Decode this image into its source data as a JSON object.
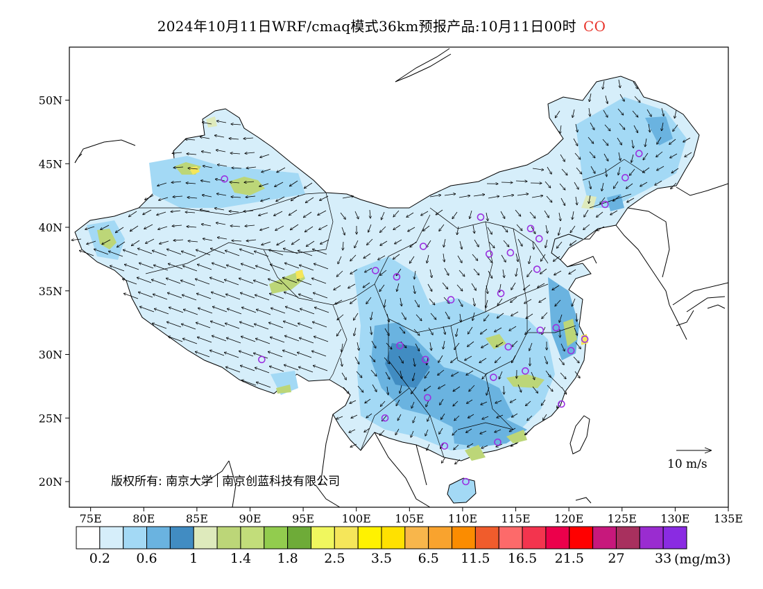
{
  "header": {
    "title": "2024年10月11日WRF/cmaq模式36km预报产品:10月11日00时",
    "species": "CO"
  },
  "map": {
    "lat_labels": [
      "50N",
      "45N",
      "40N",
      "35N",
      "30N",
      "25N",
      "20N"
    ],
    "lon_labels": [
      "75E",
      "80E",
      "85E",
      "90E",
      "95E",
      "100E",
      "105E",
      "110E",
      "115E",
      "120E",
      "125E",
      "130E",
      "135E"
    ],
    "copyright_left": "版权所有: 南京大学",
    "copyright_right": "南京创蓝科技有限公司",
    "wind_legend": "10 m/s",
    "station_marker_color": "#9b30e0",
    "stations": [
      {
        "lon": 87.6,
        "lat": 43.8
      },
      {
        "lon": 91.1,
        "lat": 29.6
      },
      {
        "lon": 101.8,
        "lat": 36.6
      },
      {
        "lon": 103.8,
        "lat": 36.1
      },
      {
        "lon": 106.3,
        "lat": 38.5
      },
      {
        "lon": 111.7,
        "lat": 40.8
      },
      {
        "lon": 116.4,
        "lat": 39.9
      },
      {
        "lon": 117.2,
        "lat": 39.1
      },
      {
        "lon": 114.5,
        "lat": 38.0
      },
      {
        "lon": 112.5,
        "lat": 37.9
      },
      {
        "lon": 117.0,
        "lat": 36.7
      },
      {
        "lon": 113.6,
        "lat": 34.8
      },
      {
        "lon": 108.9,
        "lat": 34.3
      },
      {
        "lon": 104.1,
        "lat": 30.7
      },
      {
        "lon": 106.5,
        "lat": 29.6
      },
      {
        "lon": 106.7,
        "lat": 26.6
      },
      {
        "lon": 102.7,
        "lat": 25.0
      },
      {
        "lon": 114.3,
        "lat": 30.6
      },
      {
        "lon": 112.9,
        "lat": 28.2
      },
      {
        "lon": 115.9,
        "lat": 28.7
      },
      {
        "lon": 117.3,
        "lat": 31.9
      },
      {
        "lon": 118.8,
        "lat": 32.1
      },
      {
        "lon": 120.2,
        "lat": 30.3
      },
      {
        "lon": 121.5,
        "lat": 31.2
      },
      {
        "lon": 119.3,
        "lat": 26.1
      },
      {
        "lon": 113.3,
        "lat": 23.1
      },
      {
        "lon": 108.3,
        "lat": 22.8
      },
      {
        "lon": 110.3,
        "lat": 20.0
      },
      {
        "lon": 123.4,
        "lat": 41.8
      },
      {
        "lon": 125.3,
        "lat": 43.9
      },
      {
        "lon": 126.6,
        "lat": 45.8
      }
    ]
  },
  "colorbar": {
    "colors": [
      "#ffffff",
      "#d6eefa",
      "#a3d9f5",
      "#6ab3e0",
      "#418cc2",
      "#deeabc",
      "#bcd678",
      "#c2dd7a",
      "#92cc4e",
      "#6eab38",
      "#f0f75e",
      "#f5e65a",
      "#fff200",
      "#ffe100",
      "#f8b64b",
      "#f9a32e",
      "#fb8c00",
      "#f05c2c",
      "#fd6a6a",
      "#f3344e",
      "#ec004b",
      "#ff0000",
      "#c7187c",
      "#a8305e",
      "#9a2cd0",
      "#8a2be2"
    ],
    "labels": [
      "0.2",
      "0.6",
      "1",
      "1.4",
      "1.8",
      "2.5",
      "3.5",
      "6.5",
      "11.5",
      "16.5",
      "21.5",
      "27",
      "33"
    ],
    "unit": "(mg/m3)"
  }
}
